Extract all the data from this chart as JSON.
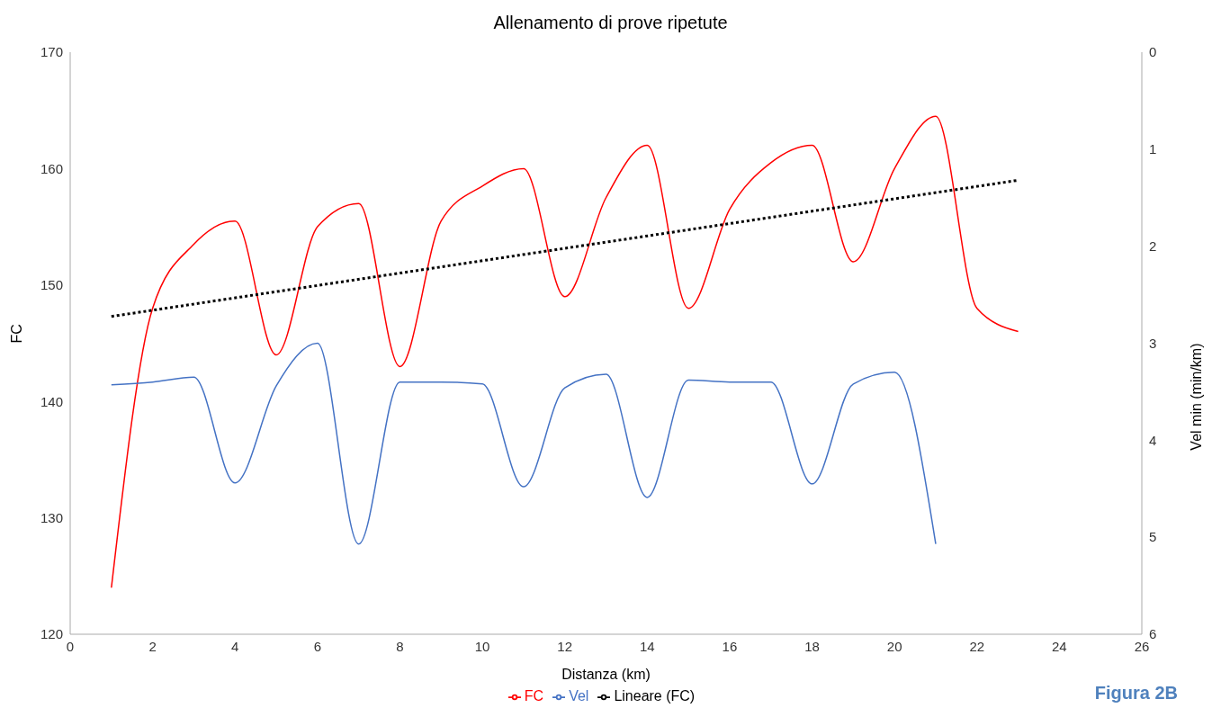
{
  "chart_data": {
    "type": "line",
    "title": "Allenamento di prove ripetute",
    "xlabel": "Distanza (km)",
    "ylabel": "FC",
    "y2label": "Vel min (min/km)",
    "x": [
      1,
      2,
      3,
      4,
      5,
      6,
      7,
      8,
      9,
      10,
      11,
      12,
      13,
      14,
      15,
      16,
      17,
      18,
      19,
      20,
      21,
      22,
      23
    ],
    "series": [
      {
        "name": "FC",
        "color": "#ff0000",
        "values": [
          124,
          148,
          153.5,
          155.5,
          144,
          155,
          157,
          143,
          155.5,
          158.5,
          160,
          149,
          157.5,
          162,
          148,
          156.5,
          160.5,
          162,
          152,
          160,
          164.5,
          148,
          146
        ]
      },
      {
        "name": "Vel",
        "color": "#4472c4",
        "axis": "y2",
        "x": [
          1,
          2,
          3,
          4,
          5,
          6,
          7,
          8,
          9,
          10,
          11,
          12,
          13,
          14,
          15,
          16,
          17,
          18,
          19,
          20,
          21
        ],
        "values": [
          3.43,
          3.4,
          3.35,
          4.44,
          3.44,
          3.0,
          5.07,
          3.4,
          3.4,
          3.42,
          4.48,
          3.46,
          3.32,
          4.59,
          3.38,
          3.4,
          3.4,
          4.45,
          3.42,
          3.3,
          5.07
        ]
      },
      {
        "name": "Lineare (FC)",
        "color": "#000000",
        "type": "line",
        "line_style": "dotted",
        "x": [
          1,
          23
        ],
        "values": [
          147.3,
          159
        ]
      }
    ],
    "xlim": [
      0,
      26
    ],
    "xticks": [
      0,
      2,
      4,
      6,
      8,
      10,
      12,
      14,
      16,
      18,
      20,
      22,
      24,
      26
    ],
    "ylim": [
      120,
      170
    ],
    "yticks": [
      120,
      130,
      140,
      150,
      160,
      170
    ],
    "y2lim": [
      6,
      0
    ],
    "y2ticks": [
      0,
      1,
      2,
      3,
      4,
      5,
      6
    ],
    "legend": "bottom",
    "marker": "none",
    "line_style": "solid",
    "annotations": [
      "Figura 2B"
    ]
  }
}
